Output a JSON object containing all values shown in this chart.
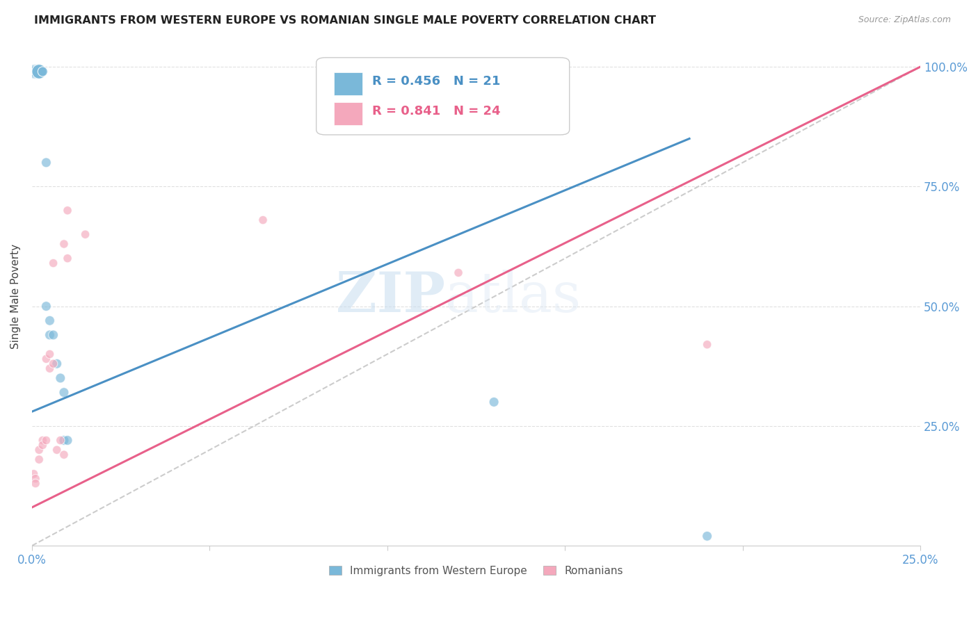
{
  "title": "IMMIGRANTS FROM WESTERN EUROPE VS ROMANIAN SINGLE MALE POVERTY CORRELATION CHART",
  "source": "Source: ZipAtlas.com",
  "ylabel": "Single Male Poverty",
  "legend_blue_label": "Immigrants from Western Europe",
  "legend_pink_label": "Romanians",
  "blue_R": "0.456",
  "blue_N": "21",
  "pink_R": "0.841",
  "pink_N": "24",
  "blue_color": "#7ab8d9",
  "pink_color": "#f4a8bc",
  "blue_line_color": "#4a90c4",
  "pink_line_color": "#e8608a",
  "diagonal_color": "#cccccc",
  "background_color": "#ffffff",
  "grid_color": "#e0e0e0",
  "axis_label_color": "#5b9bd5",
  "watermark_zip": "ZIP",
  "watermark_atlas": "atlas",
  "blue_points_x": [
    0.0005,
    0.001,
    0.001,
    0.0015,
    0.002,
    0.002,
    0.002,
    0.003,
    0.003,
    0.004,
    0.004,
    0.005,
    0.005,
    0.006,
    0.007,
    0.008,
    0.009,
    0.009,
    0.01,
    0.13,
    0.19
  ],
  "blue_points_y": [
    0.99,
    0.99,
    0.99,
    0.99,
    0.99,
    0.99,
    0.99,
    0.99,
    0.99,
    0.8,
    0.5,
    0.47,
    0.44,
    0.44,
    0.38,
    0.35,
    0.32,
    0.22,
    0.22,
    0.3,
    0.02
  ],
  "pink_points_x": [
    0.0005,
    0.001,
    0.001,
    0.002,
    0.002,
    0.003,
    0.003,
    0.004,
    0.004,
    0.005,
    0.005,
    0.006,
    0.006,
    0.007,
    0.008,
    0.009,
    0.009,
    0.01,
    0.01,
    0.015,
    0.065,
    0.09,
    0.12,
    0.19
  ],
  "pink_points_y": [
    0.15,
    0.14,
    0.13,
    0.2,
    0.18,
    0.22,
    0.21,
    0.39,
    0.22,
    0.4,
    0.37,
    0.59,
    0.38,
    0.2,
    0.22,
    0.19,
    0.63,
    0.7,
    0.6,
    0.65,
    0.68,
    0.96,
    0.57,
    0.42
  ],
  "blue_line_x0": 0.0,
  "blue_line_y0": 0.28,
  "blue_line_x1": 0.185,
  "blue_line_y1": 0.85,
  "pink_line_x0": 0.0,
  "pink_line_y0": 0.08,
  "pink_line_x1": 0.25,
  "pink_line_y1": 1.0,
  "xlim": [
    0,
    0.25
  ],
  "ylim": [
    0,
    1.04
  ],
  "figsize": [
    14.06,
    8.92
  ],
  "dpi": 100
}
